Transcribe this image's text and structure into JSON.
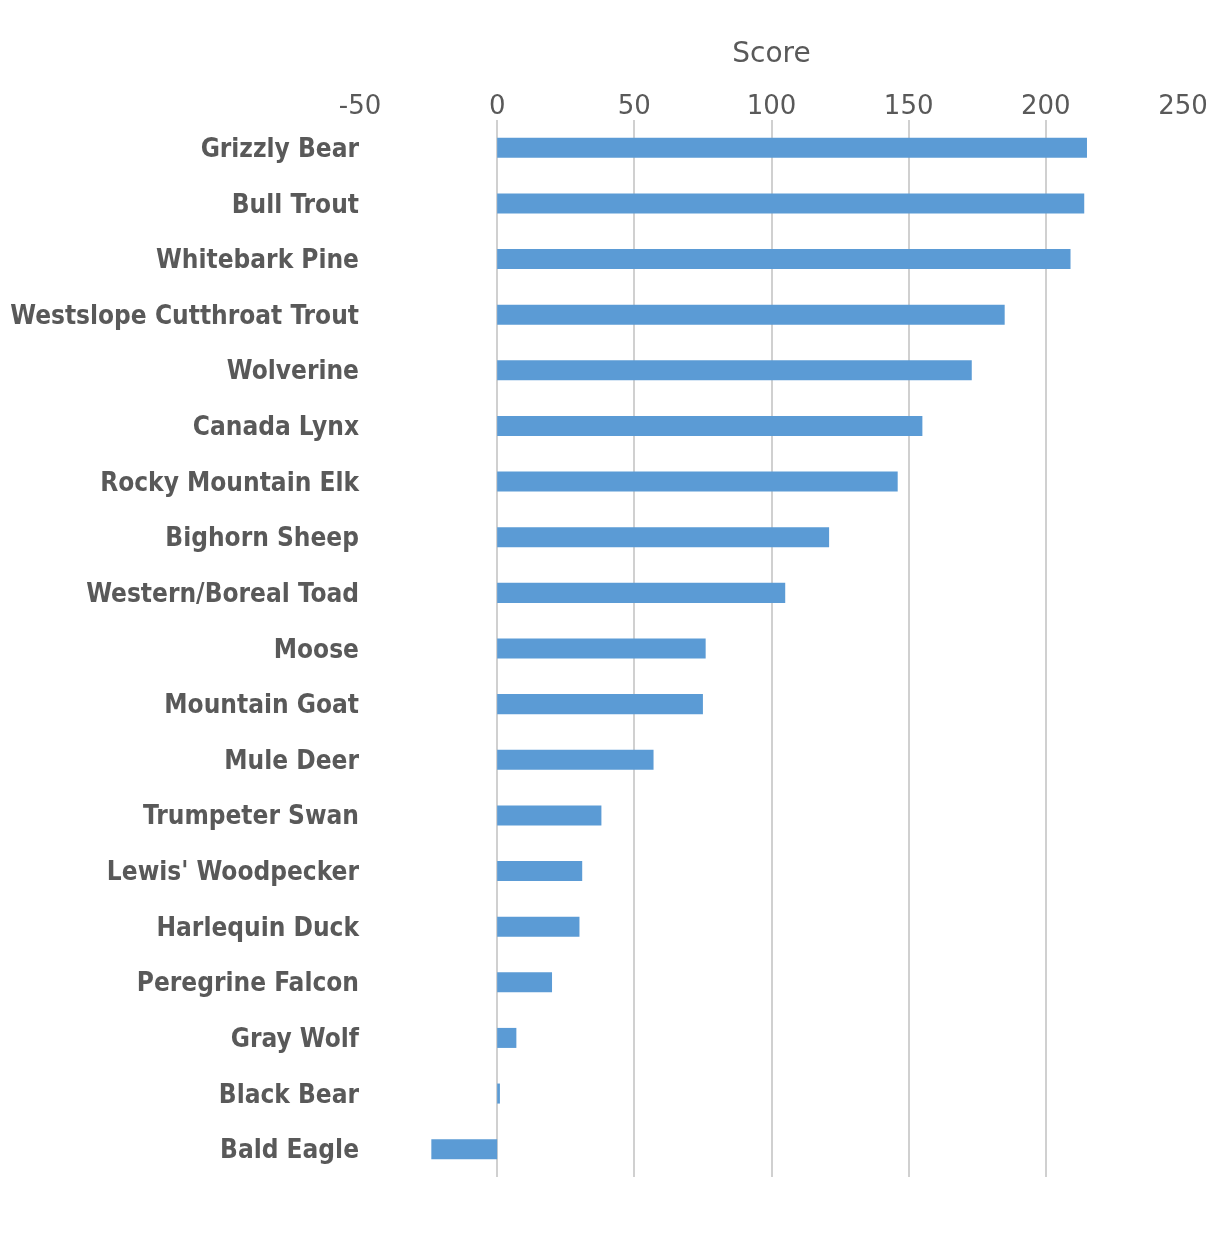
{
  "chart_data": {
    "type": "bar",
    "orientation": "horizontal",
    "xlabel": "Score",
    "categories": [
      "Grizzly Bear",
      "Bull Trout",
      "Whitebark Pine",
      "Westslope Cutthroat Trout",
      "Wolverine",
      "Canada Lynx",
      "Rocky Mountain Elk",
      "Bighorn Sheep",
      "Western/Boreal Toad",
      "Moose",
      "Mountain Goat",
      "Mule Deer",
      "Trumpeter Swan",
      "Lewis' Woodpecker",
      "Harlequin Duck",
      "Peregrine Falcon",
      "Gray Wolf",
      "Black Bear",
      "Bald Eagle"
    ],
    "values": [
      215,
      214,
      209,
      185,
      173,
      155,
      146,
      121,
      105,
      76,
      75,
      57,
      38,
      31,
      30,
      20,
      7,
      1,
      -24
    ],
    "color": "#5b9bd5",
    "xlim": [
      -50,
      250
    ],
    "xticks": [
      -50,
      0,
      50,
      100,
      150,
      200,
      250
    ],
    "grid": "x",
    "legend": false
  }
}
